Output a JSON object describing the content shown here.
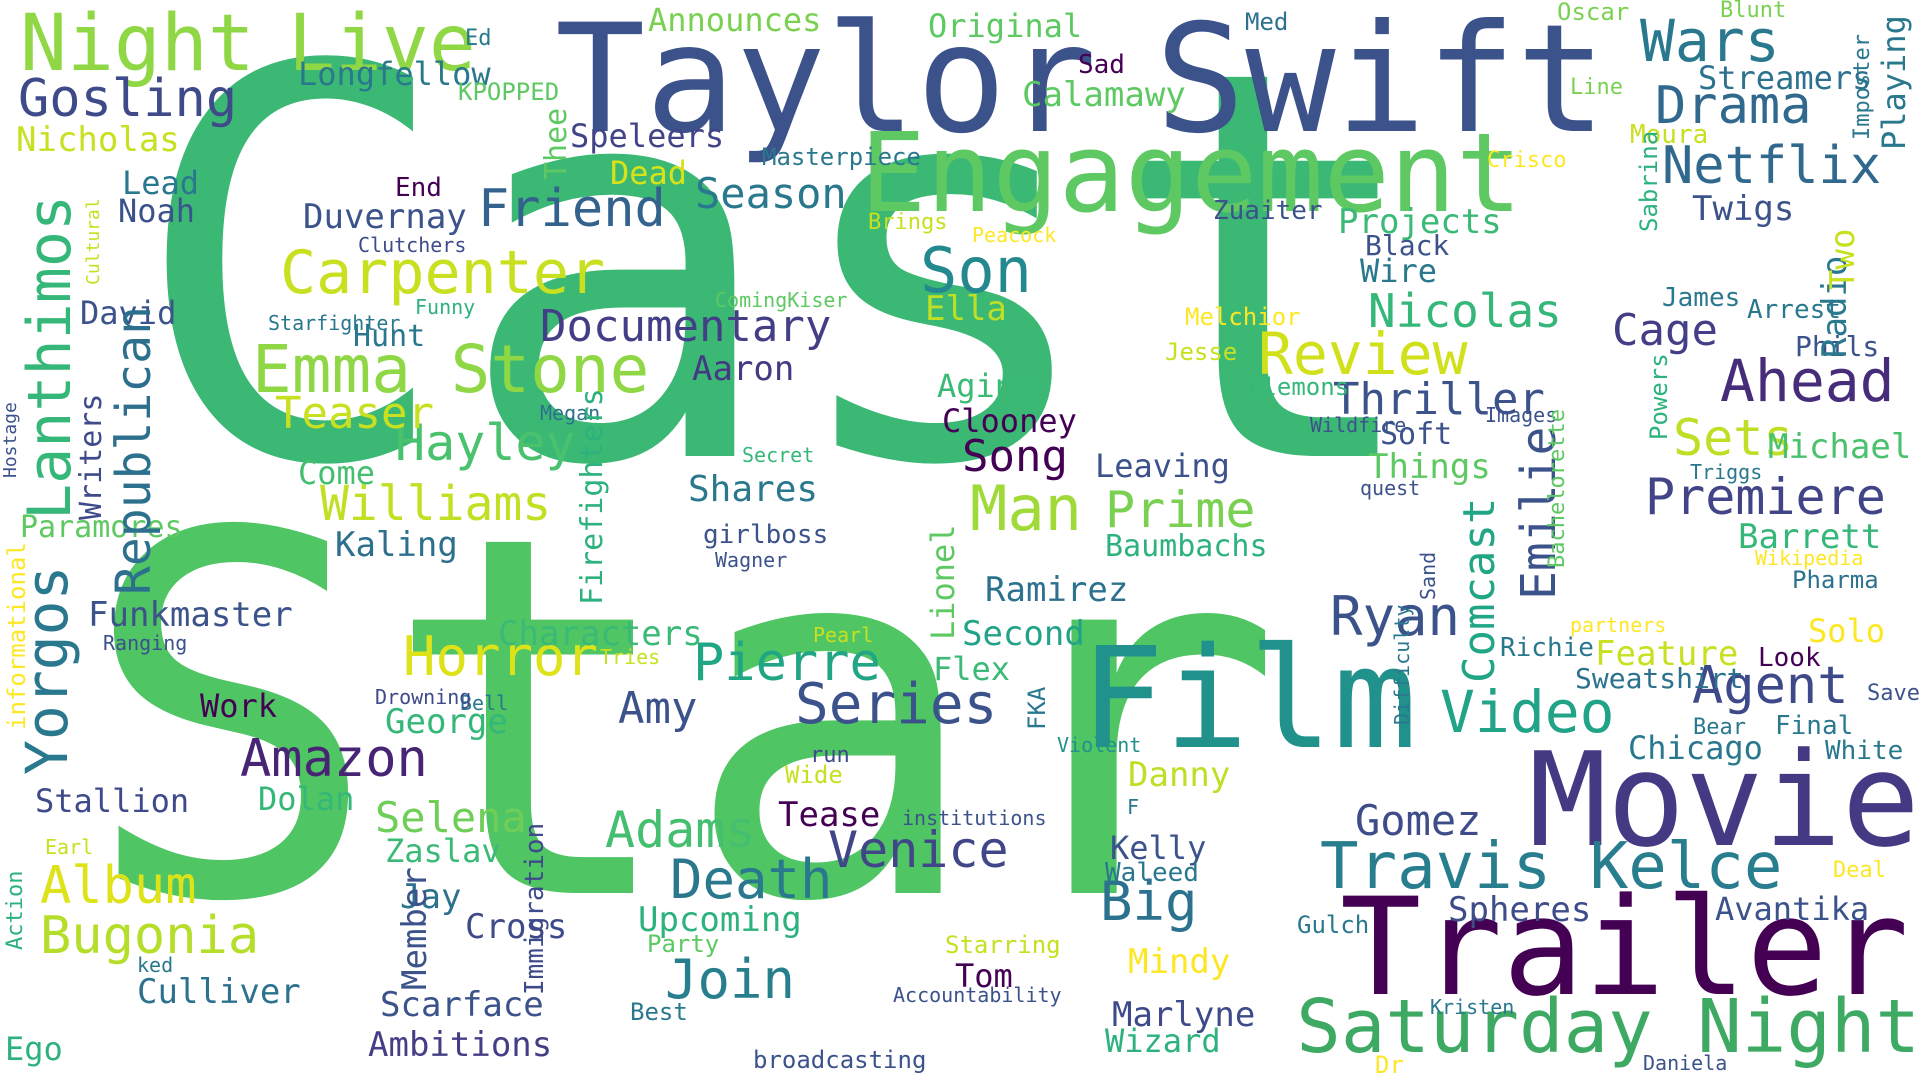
{
  "palette": [
    "#440154",
    "#3b528b",
    "#21918c",
    "#5ec962",
    "#fde725"
  ],
  "words": [
    {
      "text": "Star",
      "color": "#4fc564",
      "weight": 1.0
    },
    {
      "text": "Cast",
      "color": "#3cb875",
      "weight": 0.98
    },
    {
      "text": "Taylor",
      "color": "#3b528b",
      "weight": 0.35
    },
    {
      "text": "Swift",
      "color": "#3b528b",
      "weight": 0.35
    },
    {
      "text": "Engagement",
      "color": "#5ec962",
      "weight": 0.28
    },
    {
      "text": "Film",
      "color": "#21918c",
      "weight": 0.3
    },
    {
      "text": "Movie",
      "color": "#443983",
      "weight": 0.3
    },
    {
      "text": "Trailer",
      "color": "#440154",
      "weight": 0.3
    },
    {
      "text": "Night",
      "color": "#8fd744",
      "weight": 0.18
    },
    {
      "text": "Live",
      "color": "#8fd744",
      "weight": 0.18
    },
    {
      "text": "Saturday Night",
      "color": "#3ea963",
      "weight": 0.16
    },
    {
      "text": "Travis Kelce",
      "color": "#287d8e",
      "weight": 0.14
    },
    {
      "text": "Emma Stone",
      "color": "#8fd744",
      "weight": 0.13
    },
    {
      "text": "Carpenter",
      "color": "#c8e020",
      "weight": 0.12
    },
    {
      "text": "Lanthimos",
      "color": "#35b779",
      "weight": 0.12
    },
    {
      "text": "Yorgos",
      "color": "#2a788e",
      "weight": 0.12
    },
    {
      "text": "Review",
      "color": "#d0e11c",
      "weight": 0.12
    },
    {
      "text": "Netflix",
      "color": "#31688e",
      "weight": 0.11
    },
    {
      "text": "Drama",
      "color": "#31688e",
      "weight": 0.11
    },
    {
      "text": "Wars",
      "color": "#2a788e",
      "weight": 0.11
    },
    {
      "text": "Gosling",
      "color": "#3e4a89",
      "weight": 0.1
    },
    {
      "text": "Ahead",
      "color": "#472c7a",
      "weight": 0.1
    },
    {
      "text": "Premiere",
      "color": "#414487",
      "weight": 0.1
    },
    {
      "text": "Video",
      "color": "#20a386",
      "weight": 0.1
    },
    {
      "text": "Series",
      "color": "#3b528b",
      "weight": 0.1
    },
    {
      "text": "Amazon",
      "color": "#482475",
      "weight": 0.09
    },
    {
      "text": "Death",
      "color": "#2a788e",
      "weight": 0.09
    },
    {
      "text": "Join",
      "color": "#277f8e",
      "weight": 0.09
    },
    {
      "text": "Bugonia",
      "color": "#b5de2b",
      "weight": 0.09
    },
    {
      "text": "Album",
      "color": "#dde318",
      "weight": 0.09
    },
    {
      "text": "Man",
      "color": "#a0da39",
      "weight": 0.09
    },
    {
      "text": "Son",
      "color": "#23898e",
      "weight": 0.09
    },
    {
      "text": "Agent",
      "color": "#3e4989",
      "weight": 0.08
    },
    {
      "text": "Big",
      "color": "#2c728e",
      "weight": 0.08
    },
    {
      "text": "Prime",
      "color": "#7ad151",
      "weight": 0.08
    },
    {
      "text": "Friend",
      "color": "#33638d",
      "weight": 0.08
    },
    {
      "text": "Hayley",
      "color": "#4ac16d",
      "weight": 0.08
    },
    {
      "text": "Williams",
      "color": "#c2df23",
      "weight": 0.08
    },
    {
      "text": "Documentary",
      "color": "#433e85",
      "weight": 0.08
    },
    {
      "text": "Nicolas",
      "color": "#35b779",
      "weight": 0.08
    },
    {
      "text": "Cage",
      "color": "#433e85",
      "weight": 0.08
    },
    {
      "text": "Sets",
      "color": "#bddf26",
      "weight": 0.08
    },
    {
      "text": "Ryan",
      "color": "#3b528b",
      "weight": 0.08
    },
    {
      "text": "Pierre",
      "color": "#21a685",
      "weight": 0.08
    },
    {
      "text": "Adams",
      "color": "#44bf70",
      "weight": 0.08
    },
    {
      "text": "Venice",
      "color": "#404688",
      "weight": 0.08
    },
    {
      "text": "Selena",
      "color": "#6ece58",
      "weight": 0.08
    },
    {
      "text": "Gomez",
      "color": "#3e4c8a",
      "weight": 0.07
    },
    {
      "text": "Thriller",
      "color": "#2d708e",
      "weight": 0.08
    },
    {
      "text": "Horror",
      "color": "#3b528b",
      "weight": 0.07
    },
    {
      "text": "Amy",
      "color": "#dde318",
      "weight": 0.08
    },
    {
      "text": "Teaser",
      "color": "#3b528b",
      "weight": 0.07
    },
    {
      "text": "Season",
      "color": "#21a685",
      "weight": 0.08
    },
    {
      "text": "Aaron",
      "color": "#3b528b",
      "weight": 0.08
    },
    {
      "text": "Song",
      "color": "#c8e020",
      "weight": 0.07
    },
    {
      "text": "Shares",
      "color": "#2a788e",
      "weight": 0.07
    },
    {
      "text": "Projects",
      "color": "#443983",
      "weight": 0.06
    },
    {
      "text": "Twigs",
      "color": "#440154",
      "weight": 0.07
    },
    {
      "text": "Kaling",
      "color": "#2a788e",
      "weight": 0.06
    },
    {
      "text": "Funkmaster",
      "color": "#3aba76",
      "weight": 0.06
    },
    {
      "text": "Characters",
      "color": "#3b528b",
      "weight": 0.06
    },
    {
      "text": "Scarface",
      "color": "#2d708e",
      "weight": 0.06
    },
    {
      "text": "Ambitions",
      "color": "#3b528b",
      "weight": 0.06
    },
    {
      "text": "Culliver",
      "color": "#3aba76",
      "weight": 0.06
    },
    {
      "text": "Upcoming",
      "color": "#3b528b",
      "weight": 0.06
    },
    {
      "text": "Spheres",
      "color": "#433e85",
      "weight": 0.06
    },
    {
      "text": "Avantika",
      "color": "#2c728e",
      "weight": 0.06
    },
    {
      "text": "Chicago",
      "color": "#2db27d",
      "weight": 0.06
    },
    {
      "text": "Feature",
      "color": "#3e4c8a",
      "weight": 0.06
    },
    {
      "text": "Baumbachs",
      "color": "#3b528b",
      "weight": 0.06
    },
    {
      "text": "Duvernay",
      "color": "#2a788e",
      "weight": 0.06
    },
    {
      "text": "Nicholas",
      "color": "#c8e020",
      "weight": 0.06
    },
    {
      "text": "Longfellow",
      "color": "#2db27d",
      "weight": 0.06
    },
    {
      "text": "Original",
      "color": "#3b528b",
      "weight": 0.06
    },
    {
      "text": "Announces",
      "color": "#c8e020",
      "weight": 0.06
    },
    {
      "text": "Calamawy",
      "color": "#2a788e",
      "weight": 0.06
    },
    {
      "text": "Streamers",
      "color": "#5ec962",
      "weight": 0.06
    },
    {
      "text": "Speleers",
      "color": "#7ad151",
      "weight": 0.06
    },
    {
      "text": "Things",
      "color": "#5ec962",
      "weight": 0.06
    },
    {
      "text": "Michael",
      "color": "#2c728e",
      "weight": 0.06
    },
    {
      "text": "Barrett",
      "color": "#414487",
      "weight": 0.06
    },
    {
      "text": "Clooney",
      "color": "#5ec962",
      "weight": 0.06
    },
    {
      "text": "Aging",
      "color": "#4ac16d",
      "weight": 0.06
    },
    {
      "text": "Leaving",
      "color": "#35b779",
      "weight": 0.06
    },
    {
      "text": "Second",
      "color": "#440154",
      "weight": 0.06
    },
    {
      "text": "Ramirez",
      "color": "#3aba76",
      "weight": 0.06
    },
    {
      "text": "Danny",
      "color": "#3b528b",
      "weight": 0.06
    },
    {
      "text": "Zaslav",
      "color": "#20a386",
      "weight": 0.06
    },
    {
      "text": "Jay",
      "color": "#2c728e",
      "weight": 0.06
    },
    {
      "text": "Mindy",
      "color": "#bddf26",
      "weight": 0.06
    },
    {
      "text": "Marlyne",
      "color": "#3aba76",
      "weight": 0.06
    },
    {
      "text": "Wizard",
      "color": "#2c728e",
      "weight": 0.06
    },
    {
      "text": "Kelly",
      "color": "#fde725",
      "weight": 0.06
    },
    {
      "text": "Waleed",
      "color": "#3e4a89",
      "weight": 0.06
    },
    {
      "text": "George",
      "color": "#2db27d",
      "weight": 0.06
    },
    {
      "text": "Dolan",
      "color": "#3b528b",
      "weight": 0.06
    },
    {
      "text": "Stallion",
      "color": "#2a788e",
      "weight": 0.05
    },
    {
      "text": "Work",
      "color": "#35b779",
      "weight": 0.06
    },
    {
      "text": "Tease",
      "color": "#35b779",
      "weight": 0.06
    },
    {
      "text": "Flex",
      "color": "#3e4a89",
      "weight": 0.06
    },
    {
      "text": "David",
      "color": "#440154",
      "weight": 0.06
    },
    {
      "text": "Hunt",
      "color": "#440154",
      "weight": 0.06
    },
    {
      "text": "Come",
      "color": "#3aba76",
      "weight": 0.06
    },
    {
      "text": "Noah",
      "color": "#3b528b",
      "weight": 0.06
    },
    {
      "text": "Lead",
      "color": "#2a788e",
      "weight": 0.05
    },
    {
      "text": "Dead",
      "color": "#44bf70",
      "weight": 0.06
    },
    {
      "text": "End",
      "color": "#3b528b",
      "weight": 0.06
    },
    {
      "text": "Ella",
      "color": "#2a788e",
      "weight": 0.06
    },
    {
      "text": "Wire",
      "color": "#d8e219",
      "weight": 0.06
    },
    {
      "text": "Black",
      "color": "#440154",
      "weight": 0.05
    },
    {
      "text": "Zuaiter",
      "color": "#bddf26",
      "weight": 0.06
    },
    {
      "text": "Soft",
      "color": "#2a788e",
      "weight": 0.06
    },
    {
      "text": "Phils",
      "color": "#3b528b",
      "weight": 0.05
    },
    {
      "text": "Arrest",
      "color": "#3b528b",
      "weight": 0.05
    },
    {
      "text": "James",
      "color": "#3b528b",
      "weight": 0.05
    },
    {
      "text": "Look",
      "color": "#3b528b",
      "weight": 0.05
    },
    {
      "text": "Solo",
      "color": "#2a788e",
      "weight": 0.05
    },
    {
      "text": "Richie",
      "color": "#2a788e",
      "weight": 0.05
    },
    {
      "text": "Sweatshirt",
      "color": "#440154",
      "weight": 0.05
    },
    {
      "text": "Final",
      "color": "#fde725",
      "weight": 0.05
    },
    {
      "text": "White",
      "color": "#2a788e",
      "weight": 0.05
    },
    {
      "text": "Ego",
      "color": "#2c728e",
      "weight": 0.05
    },
    {
      "text": "Paramores",
      "color": "#2a788e",
      "weight": 0.05
    },
    {
      "text": "Cross",
      "color": "#2a788e",
      "weight": 0.05
    },
    {
      "text": "Tom",
      "color": "#2db27d",
      "weight": 0.06
    },
    {
      "text": "Sad",
      "color": "#5ec962",
      "weight": 0.06
    },
    {
      "text": "Ed",
      "color": "#3e4a89",
      "weight": 0.06
    },
    {
      "text": "Med",
      "color": "#440154",
      "weight": 0.06
    },
    {
      "text": "Oscar",
      "color": "#440154",
      "weight": 0.05
    },
    {
      "text": "Blunt",
      "color": "#2a788e",
      "weight": 0.04
    },
    {
      "text": "KPOPPED",
      "color": "#2c728e",
      "weight": 0.04
    },
    {
      "text": "Line",
      "color": "#7ad151",
      "weight": 0.04
    },
    {
      "text": "Masterpiece",
      "color": "#7ad151",
      "weight": 0.04
    },
    {
      "text": "Crisco",
      "color": "#5ec962",
      "weight": 0.04
    },
    {
      "text": "Moura",
      "color": "#7ad151",
      "weight": 0.04
    },
    {
      "text": "Brings",
      "color": "#2a788e",
      "weight": 0.04
    },
    {
      "text": "Peacock",
      "color": "#fde725",
      "weight": 0.04
    },
    {
      "text": "Clutchers",
      "color": "#c8e020",
      "weight": 0.05
    },
    {
      "text": "Funny",
      "color": "#c8e020",
      "weight": 0.04
    },
    {
      "text": "Starfighter",
      "color": "#fde725",
      "weight": 0.04
    },
    {
      "text": "ComingKiser",
      "color": "#3e4a89",
      "weight": 0.04
    },
    {
      "text": "Melchior",
      "color": "#2db27d",
      "weight": 0.04
    },
    {
      "text": "Jesse",
      "color": "#2a788e",
      "weight": 0.04
    },
    {
      "text": "Plemons",
      "color": "#5ec962",
      "weight": 0.04
    },
    {
      "text": "Wildfire",
      "color": "#fde725",
      "weight": 0.04
    },
    {
      "text": "Images",
      "color": "#c8e020",
      "weight": 0.04
    },
    {
      "text": "Megan",
      "color": "#35b779",
      "weight": 0.04
    },
    {
      "text": "Secret",
      "color": "#3b528b",
      "weight": 0.04
    },
    {
      "text": "quest",
      "color": "#3b528b",
      "weight": 0.04
    },
    {
      "text": "Triggs",
      "color": "#2c728e",
      "weight": 0.04
    },
    {
      "text": "Wikipedia",
      "color": "#35b779",
      "weight": 0.04
    },
    {
      "text": "Pharma",
      "color": "#3b528b",
      "weight": 0.04
    },
    {
      "text": "girlboss",
      "color": "#2a788e",
      "weight": 0.04
    },
    {
      "text": "Wagner",
      "color": "#fde725",
      "weight": 0.04
    },
    {
      "text": "partners",
      "color": "#2c728e",
      "weight": 0.04
    },
    {
      "text": "Pearl",
      "color": "#3b528b",
      "weight": 0.05
    },
    {
      "text": "Tries",
      "color": "#3b528b",
      "weight": 0.04
    },
    {
      "text": "Bell",
      "color": "#fde725",
      "weight": 0.04
    },
    {
      "text": "Drowning",
      "color": "#c8e020",
      "weight": 0.04
    },
    {
      "text": "Ranging",
      "color": "#c8e020",
      "weight": 0.04
    },
    {
      "text": "Violent",
      "color": "#2a788e",
      "weight": 0.04
    },
    {
      "text": "run",
      "color": "#3e4a89",
      "weight": 0.04
    },
    {
      "text": "Wide",
      "color": "#3b528b",
      "weight": 0.04
    },
    {
      "text": "institutions",
      "color": "#21918c",
      "weight": 0.04
    },
    {
      "text": "F",
      "color": "#3e4a89",
      "weight": 0.04
    },
    {
      "text": "Bear",
      "color": "#c8e020",
      "weight": 0.04
    },
    {
      "text": "Save",
      "color": "#3b528b",
      "weight": 0.04
    },
    {
      "text": "Deal",
      "color": "#2a788e",
      "weight": 0.04
    },
    {
      "text": "Earl",
      "color": "#2a788e",
      "weight": 0.04
    },
    {
      "text": "ked",
      "color": "#3b528b",
      "weight": 0.04
    },
    {
      "text": "Party",
      "color": "#fde725",
      "weight": 0.04
    },
    {
      "text": "Starring",
      "color": "#c8e020",
      "weight": 0.04
    },
    {
      "text": "Accountability",
      "color": "#2a788e",
      "weight": 0.04
    },
    {
      "text": "Best",
      "color": "#5ec962",
      "weight": 0.04
    },
    {
      "text": "Gulch",
      "color": "#c8e020",
      "weight": 0.04
    },
    {
      "text": "Kristen",
      "color": "#3b528b",
      "weight": 0.04
    },
    {
      "text": "broadcasting",
      "color": "#2a788e",
      "weight": 0.04
    },
    {
      "text": "Dr",
      "color": "#2a788e",
      "weight": 0.04
    },
    {
      "text": "Daniela",
      "color": "#2a788e",
      "weight": 0.04
    },
    {
      "text": "Thee",
      "color": "#3b528b",
      "weight": 0.04
    },
    {
      "text": "Cultural",
      "color": "#fde725",
      "weight": 0.04
    },
    {
      "text": "Hostage",
      "color": "#3b528b",
      "weight": 0.04
    },
    {
      "text": "Writers",
      "color": "#5ec962",
      "weight": 0.05
    },
    {
      "text": "Republican",
      "color": "#c8e020",
      "weight": 0.04
    },
    {
      "text": "informational",
      "color": "#3b528b",
      "weight": 0.04
    },
    {
      "text": "Action",
      "color": "#3e4a89",
      "weight": 0.05
    },
    {
      "text": "Firefighters",
      "color": "#fde725",
      "weight": 0.04
    },
    {
      "text": "Immigration",
      "color": "#2db27d",
      "weight": 0.04
    },
    {
      "text": "Member",
      "color": "#2db27d",
      "weight": 0.05
    },
    {
      "text": "Lionel",
      "color": "#3e4a89",
      "weight": 0.05
    },
    {
      "text": "FKA",
      "color": "#3b528b",
      "weight": 0.06
    },
    {
      "text": "Difficulty",
      "color": "#5ec962",
      "weight": 0.05
    },
    {
      "text": "Sand",
      "color": "#2a788e",
      "weight": 0.04
    },
    {
      "text": "Comcast",
      "color": "#2a788e",
      "weight": 0.04
    },
    {
      "text": "Emilie",
      "color": "#3b528b",
      "weight": 0.04
    },
    {
      "text": "Bachelorette",
      "color": "#5ec962",
      "weight": 0.04
    },
    {
      "text": "Powers",
      "color": "#2db27d",
      "weight": 0.04
    },
    {
      "text": "Radio",
      "color": "#2a788e",
      "weight": 0.05
    },
    {
      "text": "Two",
      "color": "#c8e020",
      "weight": 0.05
    },
    {
      "text": "Sabrina",
      "color": "#2db27d",
      "weight": 0.04
    },
    {
      "text": "Imposter",
      "color": "#2a788e",
      "weight": 0.04
    },
    {
      "text": "Playing",
      "color": "#2a788e",
      "weight": 0.05
    }
  ]
}
